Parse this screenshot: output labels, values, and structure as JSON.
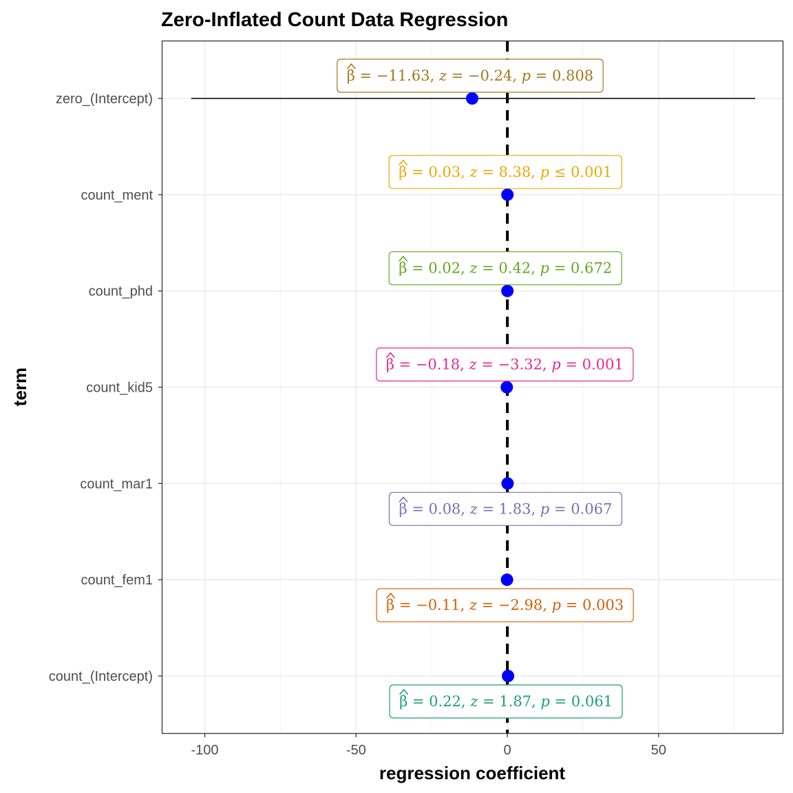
{
  "chart_data": {
    "type": "scatter",
    "subtype": "coefficient-forest-plot",
    "title": "Zero-Inflated Count Data Regression",
    "xlabel": "regression coefficient",
    "ylabel": "term",
    "xlim": [
      -114,
      91
    ],
    "x_ticks": [
      -100,
      -50,
      0,
      50
    ],
    "x_tick_labels": [
      "-100",
      "-50",
      "0",
      "50"
    ],
    "reference_line_x": 0,
    "grid": true,
    "point_color": "#0000ff",
    "terms": [
      {
        "term": "zero_(Intercept)",
        "estimate": -11.63,
        "conf_low": -104.5,
        "conf_high": 81.9,
        "beta": "−11.63",
        "z": "−0.24",
        "p_op": "=",
        "p": "0.808",
        "color": "#a6761d",
        "label_side": "above"
      },
      {
        "term": "count_ment",
        "estimate": 0.03,
        "beta": "0.03",
        "z": "8.38",
        "p_op": "≤",
        "p": "0.001",
        "color": "#e6ab02",
        "label_side": "above"
      },
      {
        "term": "count_phd",
        "estimate": 0.02,
        "beta": "0.02",
        "z": "0.42",
        "p_op": "=",
        "p": "0.672",
        "color": "#66a61e",
        "label_side": "above"
      },
      {
        "term": "count_kid5",
        "estimate": -0.18,
        "beta": "−0.18",
        "z": "−3.32",
        "p_op": "=",
        "p": "0.001",
        "color": "#e7298a",
        "label_side": "above"
      },
      {
        "term": "count_mar1",
        "estimate": 0.08,
        "beta": "0.08",
        "z": "1.83",
        "p_op": "=",
        "p": "0.067",
        "color": "#7570b3",
        "label_side": "below"
      },
      {
        "term": "count_fem1",
        "estimate": -0.11,
        "beta": "−0.11",
        "z": "−2.98",
        "p_op": "=",
        "p": "0.003",
        "color": "#d95f02",
        "label_side": "below"
      },
      {
        "term": "count_(Intercept)",
        "estimate": 0.22,
        "beta": "0.22",
        "z": "1.87",
        "p_op": "=",
        "p": "0.061",
        "color": "#1b9e77",
        "label_side": "below"
      }
    ]
  }
}
